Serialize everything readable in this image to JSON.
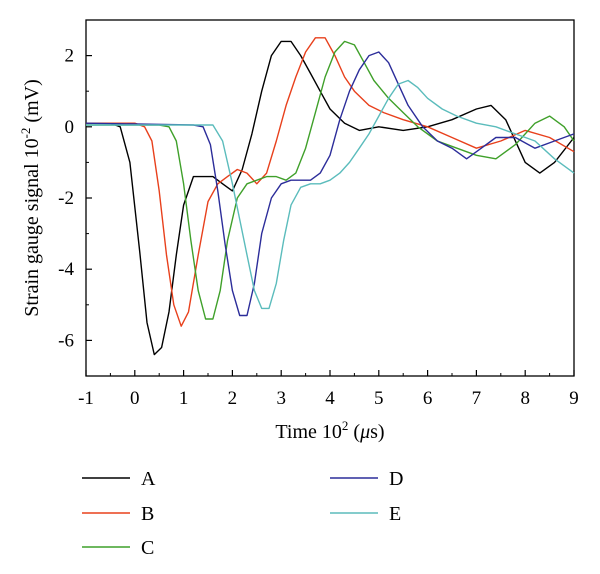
{
  "chart_data": {
    "type": "line",
    "title": "",
    "xlabel": "Time 10",
    "xlabel_exp": "2",
    "xlabel_unit_pre": " (",
    "xlabel_mu": "μ",
    "xlabel_unit_post": "s)",
    "ylabel": "Strain gauge signal 10",
    "ylabel_exp": "-2",
    "ylabel_unit": " (mV)",
    "xlim": [
      -1,
      9
    ],
    "ylim": [
      -7,
      3
    ],
    "xticks": [
      -1,
      0,
      1,
      2,
      3,
      4,
      5,
      6,
      7,
      8,
      9
    ],
    "yticks": [
      2,
      0,
      -2,
      -4,
      -6
    ],
    "ytick_labels": [
      "2",
      "0",
      "-2",
      "-4",
      "-6"
    ],
    "grid": false,
    "legend_position": "bottom",
    "series": [
      {
        "name": "A",
        "color": "#000000",
        "x": [
          -1.0,
          -0.5,
          -0.3,
          -0.1,
          0.1,
          0.25,
          0.4,
          0.55,
          0.7,
          0.85,
          1.0,
          1.2,
          1.4,
          1.6,
          1.8,
          2.0,
          2.2,
          2.4,
          2.6,
          2.8,
          3.0,
          3.2,
          3.4,
          3.6,
          3.8,
          4.0,
          4.3,
          4.6,
          5.0,
          5.5,
          6.0,
          6.5,
          7.0,
          7.3,
          7.6,
          8.0,
          8.3,
          8.6,
          9.0
        ],
        "y": [
          0.1,
          0.1,
          0.0,
          -1.0,
          -3.5,
          -5.5,
          -6.4,
          -6.2,
          -5.2,
          -3.6,
          -2.2,
          -1.4,
          -1.4,
          -1.4,
          -1.6,
          -1.8,
          -1.2,
          -0.2,
          1.0,
          2.0,
          2.4,
          2.4,
          2.0,
          1.5,
          1.0,
          0.5,
          0.1,
          -0.1,
          0.0,
          -0.1,
          0.0,
          0.2,
          0.5,
          0.6,
          0.2,
          -1.0,
          -1.3,
          -1.0,
          -0.3
        ]
      },
      {
        "name": "B",
        "color": "#e8401c",
        "x": [
          -1.0,
          0.0,
          0.2,
          0.35,
          0.5,
          0.65,
          0.8,
          0.95,
          1.1,
          1.3,
          1.5,
          1.7,
          1.9,
          2.1,
          2.3,
          2.5,
          2.7,
          2.9,
          3.1,
          3.3,
          3.5,
          3.7,
          3.9,
          4.1,
          4.3,
          4.5,
          4.8,
          5.1,
          5.5,
          6.0,
          6.5,
          7.0,
          7.5,
          8.0,
          8.5,
          9.0
        ],
        "y": [
          0.1,
          0.1,
          0.0,
          -0.4,
          -1.8,
          -3.6,
          -5.0,
          -5.6,
          -5.2,
          -3.6,
          -2.1,
          -1.6,
          -1.4,
          -1.2,
          -1.3,
          -1.6,
          -1.3,
          -0.4,
          0.6,
          1.4,
          2.1,
          2.5,
          2.5,
          2.0,
          1.4,
          1.0,
          0.6,
          0.4,
          0.2,
          0.0,
          -0.3,
          -0.6,
          -0.4,
          -0.1,
          -0.3,
          -0.7
        ]
      },
      {
        "name": "C",
        "color": "#3fa02a",
        "x": [
          -1.0,
          0.5,
          0.7,
          0.85,
          1.0,
          1.15,
          1.3,
          1.45,
          1.6,
          1.75,
          1.9,
          2.1,
          2.3,
          2.5,
          2.7,
          2.9,
          3.1,
          3.3,
          3.5,
          3.7,
          3.9,
          4.1,
          4.3,
          4.5,
          4.7,
          4.9,
          5.2,
          5.5,
          5.8,
          6.2,
          6.6,
          7.0,
          7.4,
          7.8,
          8.2,
          8.5,
          8.8,
          9.0
        ],
        "y": [
          0.05,
          0.05,
          0.0,
          -0.4,
          -1.6,
          -3.2,
          -4.6,
          -5.4,
          -5.4,
          -4.6,
          -3.2,
          -2.0,
          -1.6,
          -1.5,
          -1.4,
          -1.4,
          -1.5,
          -1.3,
          -0.6,
          0.4,
          1.4,
          2.1,
          2.4,
          2.3,
          1.8,
          1.3,
          0.8,
          0.4,
          0.0,
          -0.4,
          -0.6,
          -0.8,
          -0.9,
          -0.5,
          0.1,
          0.3,
          0.0,
          -0.4
        ]
      },
      {
        "name": "D",
        "color": "#2c2d9a",
        "x": [
          -1.0,
          1.2,
          1.4,
          1.55,
          1.7,
          1.85,
          2.0,
          2.15,
          2.3,
          2.45,
          2.6,
          2.8,
          3.0,
          3.2,
          3.4,
          3.6,
          3.8,
          4.0,
          4.2,
          4.4,
          4.6,
          4.8,
          5.0,
          5.2,
          5.4,
          5.6,
          5.9,
          6.2,
          6.5,
          6.8,
          7.1,
          7.4,
          7.8,
          8.2,
          8.6,
          9.0
        ],
        "y": [
          0.1,
          0.05,
          0.0,
          -0.5,
          -1.8,
          -3.3,
          -4.6,
          -5.3,
          -5.3,
          -4.4,
          -3.0,
          -2.0,
          -1.6,
          -1.5,
          -1.5,
          -1.5,
          -1.3,
          -0.8,
          0.2,
          1.0,
          1.6,
          2.0,
          2.1,
          1.8,
          1.2,
          0.6,
          0.0,
          -0.4,
          -0.6,
          -0.9,
          -0.6,
          -0.3,
          -0.3,
          -0.6,
          -0.4,
          -0.2
        ]
      },
      {
        "name": "E",
        "color": "#5bbcbc",
        "x": [
          -1.0,
          1.6,
          1.8,
          2.0,
          2.15,
          2.3,
          2.45,
          2.6,
          2.75,
          2.9,
          3.05,
          3.2,
          3.4,
          3.6,
          3.8,
          4.0,
          4.2,
          4.4,
          4.6,
          4.8,
          5.0,
          5.2,
          5.4,
          5.6,
          5.8,
          6.0,
          6.3,
          6.6,
          7.0,
          7.4,
          7.8,
          8.2,
          8.6,
          9.0
        ],
        "y": [
          0.05,
          0.05,
          -0.4,
          -1.6,
          -2.6,
          -3.6,
          -4.6,
          -5.1,
          -5.1,
          -4.4,
          -3.2,
          -2.2,
          -1.7,
          -1.6,
          -1.6,
          -1.5,
          -1.3,
          -1.0,
          -0.6,
          -0.2,
          0.3,
          0.8,
          1.2,
          1.3,
          1.1,
          0.8,
          0.5,
          0.3,
          0.1,
          0.0,
          -0.2,
          -0.4,
          -0.9,
          -1.3
        ]
      }
    ]
  }
}
